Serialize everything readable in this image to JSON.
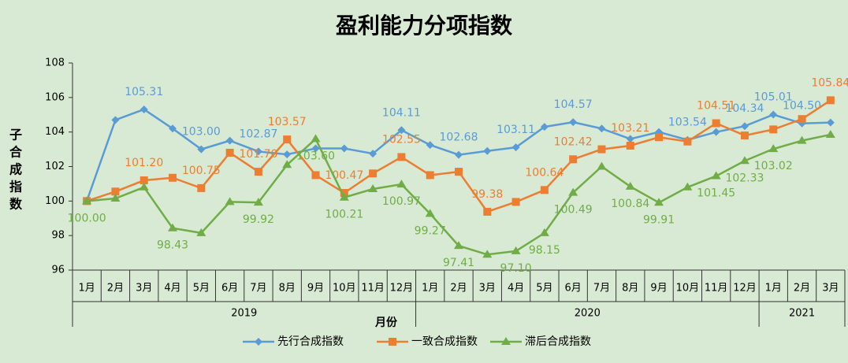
{
  "chart_data": {
    "type": "line",
    "title": "盈利能力分项指数",
    "y_label": "子合成指数",
    "x_label": "月份",
    "categories": [
      "1月",
      "2月",
      "3月",
      "4月",
      "5月",
      "6月",
      "7月",
      "8月",
      "9月",
      "10月",
      "11月",
      "12月",
      "1月",
      "2月",
      "3月",
      "4月",
      "5月",
      "6月",
      "7月",
      "8月",
      "9月",
      "10月",
      "11月",
      "12月",
      "1月",
      "2月",
      "3月"
    ],
    "groups": [
      {
        "label": "2019",
        "count": 12
      },
      {
        "label": "2020",
        "count": 12
      },
      {
        "label": "2021",
        "count": 3
      }
    ],
    "ylim": [
      96,
      108
    ],
    "yticks": [
      96,
      98,
      100,
      102,
      104,
      106,
      108
    ],
    "grid": false,
    "legend": "bottom",
    "series": [
      {
        "name": "先行合成指数",
        "color": "#5b9bd5",
        "marker": "diamond",
        "values": [
          100.0,
          104.7,
          105.31,
          104.2,
          103.0,
          103.5,
          102.87,
          102.7,
          103.05,
          103.05,
          102.75,
          104.11,
          103.25,
          102.68,
          102.9,
          103.11,
          104.3,
          104.57,
          104.2,
          103.6,
          104.0,
          103.54,
          104.0,
          104.34,
          105.01,
          104.5,
          104.55
        ],
        "value_labels": [
          null,
          null,
          "105.31",
          null,
          "103.00",
          null,
          "102.87",
          null,
          null,
          null,
          null,
          "104.11",
          null,
          "102.68",
          null,
          "103.11",
          null,
          "104.57",
          null,
          null,
          null,
          "103.54",
          null,
          "104.34",
          "105.01",
          "104.50",
          null
        ]
      },
      {
        "name": "一致合成指数",
        "color": "#ed7d31",
        "marker": "square",
        "values": [
          100,
          100.55,
          101.2,
          101.35,
          100.75,
          102.8,
          101.7,
          103.57,
          101.5,
          100.47,
          101.6,
          102.55,
          101.5,
          101.7,
          99.38,
          99.95,
          100.64,
          102.42,
          103.0,
          103.21,
          103.7,
          103.45,
          104.51,
          103.8,
          104.15,
          104.75,
          105.84
        ],
        "value_labels": [
          null,
          null,
          "101.20",
          null,
          "100.75",
          null,
          "101.70",
          "103.57",
          null,
          "100.47",
          null,
          "102.55",
          null,
          null,
          "99.38",
          null,
          "100.64",
          "102.42",
          null,
          "103.21",
          null,
          null,
          "104.51",
          null,
          null,
          null,
          "105.84"
        ]
      },
      {
        "name": "滞后合成指数",
        "color": "#70ad47",
        "marker": "triangle",
        "values": [
          100.0,
          100.15,
          100.8,
          98.43,
          98.15,
          99.95,
          99.92,
          102.1,
          103.6,
          100.21,
          100.7,
          100.97,
          99.27,
          97.41,
          96.9,
          97.1,
          98.15,
          100.49,
          102.0,
          100.84,
          99.91,
          100.8,
          101.45,
          102.33,
          103.02,
          103.5,
          103.85
        ],
        "value_labels": [
          "100.00",
          null,
          null,
          "98.43",
          null,
          null,
          "99.92",
          null,
          "103.60",
          "100.21",
          null,
          "100.97",
          "99.27",
          "97.41",
          null,
          "97.10",
          "98.15",
          "100.49",
          null,
          "100.84",
          "99.91",
          null,
          "101.45",
          "102.33",
          "103.02",
          null,
          null
        ]
      }
    ]
  }
}
